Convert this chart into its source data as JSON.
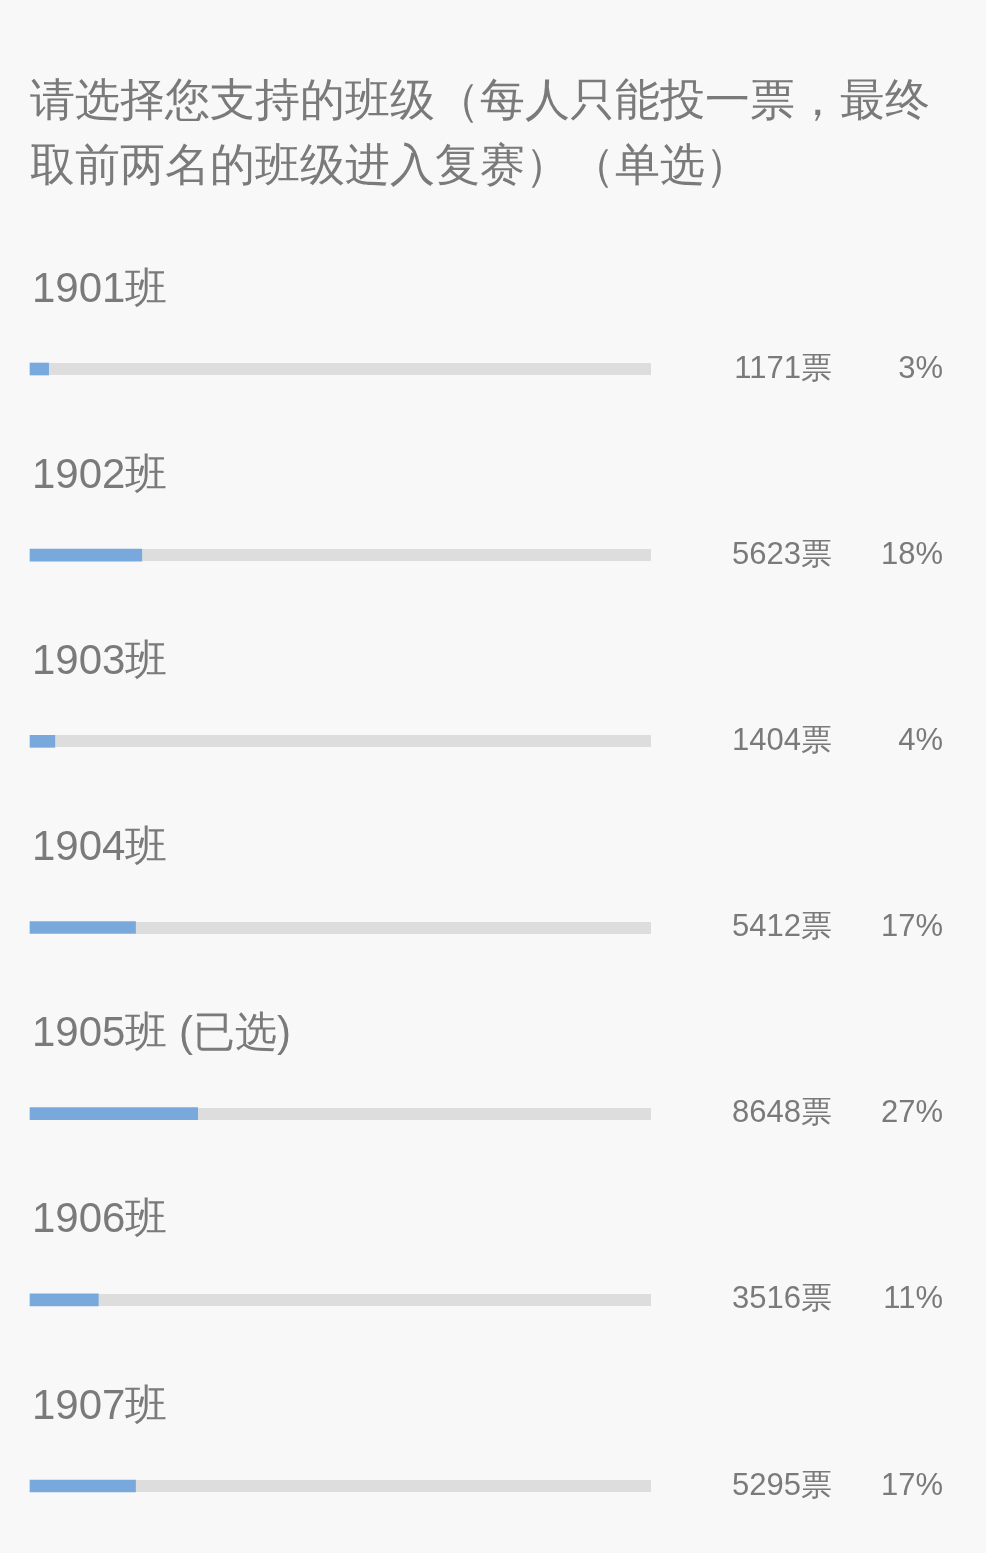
{
  "chart_data": {
    "type": "bar",
    "orientation": "horizontal",
    "title": "请选择您支持的班级（每人只能投一票，最终取前两名的班级进入复赛）（单选）",
    "categories": [
      "1901班",
      "1902班",
      "1903班",
      "1904班",
      "1905班 (已选)",
      "1906班",
      "1907班"
    ],
    "values": [
      3,
      18,
      4,
      17,
      27,
      11,
      17
    ],
    "value_labels": [
      "3%",
      "18%",
      "4%",
      "17%",
      "27%",
      "11%",
      "17%"
    ],
    "color": "#79a8dd",
    "xlim": [
      0,
      100
    ],
    "tick_labels": "y",
    "annotations": [
      "1171票",
      "5623票",
      "1404票",
      "5412票",
      "8648票",
      "3516票",
      "5295票"
    ]
  }
}
